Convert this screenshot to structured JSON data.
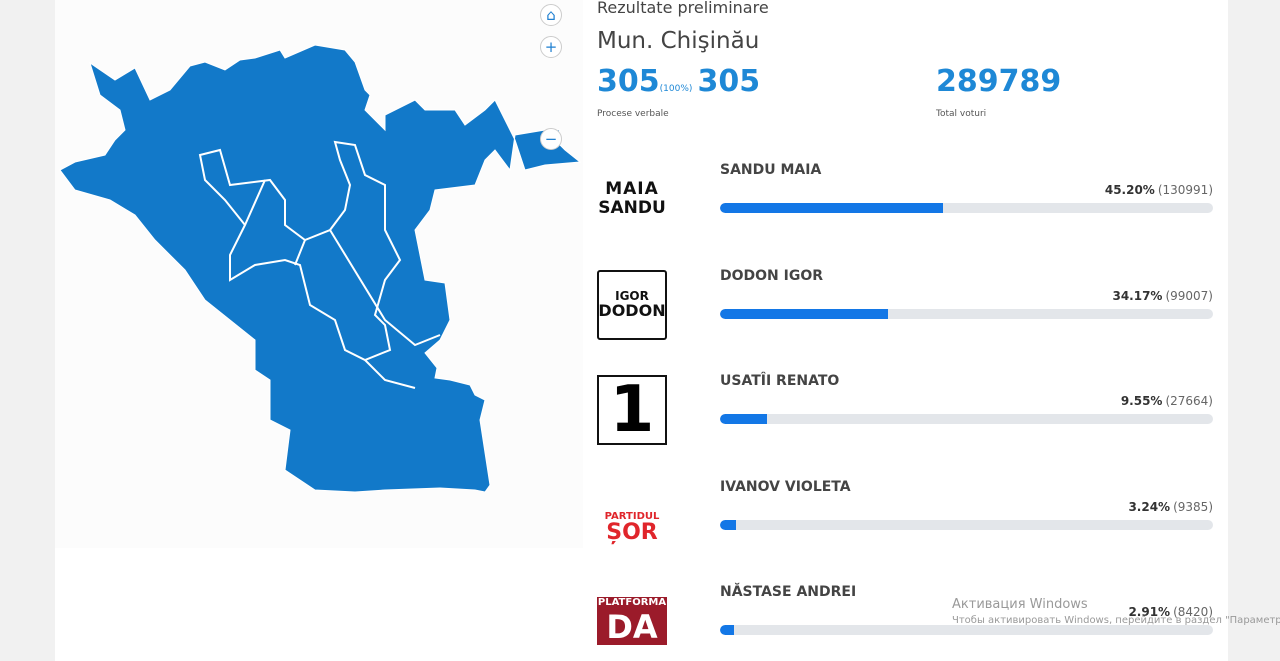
{
  "header": {
    "subtitle": "Rezultate preliminare",
    "title": "Mun. Chişinău"
  },
  "stats": {
    "protocols": "305",
    "protocols_pct": "(100%)",
    "protocols_total": "305",
    "protocols_label": "Procese verbale",
    "total_votes": "289789",
    "total_votes_label": "Total voturi"
  },
  "candidates": [
    {
      "logo": [
        "MAIA",
        "SANDU"
      ],
      "name": "SANDU MAIA",
      "share": 45.2,
      "percent": "45.20%",
      "votes": "(130991)"
    },
    {
      "logo": [
        "IGOR",
        "DODON"
      ],
      "name": "DODON IGOR",
      "share": 34.17,
      "percent": "34.17%",
      "votes": "(99007)"
    },
    {
      "logo": [
        "1"
      ],
      "name": "USATÎI RENATO",
      "share": 9.55,
      "percent": "9.55%",
      "votes": "(27664)"
    },
    {
      "logo": [
        "PARTIDUL",
        "ȘOR"
      ],
      "name": "IVANOV VIOLETA",
      "share": 3.24,
      "percent": "3.24%",
      "votes": "(9385)"
    },
    {
      "logo": [
        "PLATFORMA",
        "DA"
      ],
      "name": "NĂSTASE ANDREI",
      "share": 2.91,
      "percent": "2.91%",
      "votes": "(8420)"
    }
  ],
  "watermark": {
    "title": "Активация Windows",
    "text": "Чтобы активировать Windows, перейдите в раздел \"Параметры\"."
  }
}
